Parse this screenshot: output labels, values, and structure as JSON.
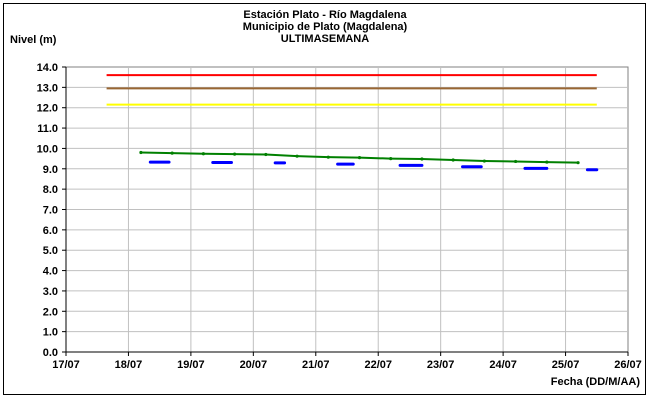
{
  "chart_data": {
    "type": "line",
    "title": "Estación Plato - Río Magdalena",
    "subtitle": "Municipio de Plato (Magdalena)",
    "subtitle2": "ULTIMASEMANA",
    "ylabel": "Nivel (m)",
    "xlabel": "Fecha (DD/M/AA)",
    "ylim": [
      0,
      14
    ],
    "xlim": [
      0,
      9
    ],
    "yticks": [
      "0.0",
      "1.0",
      "2.0",
      "3.0",
      "4.0",
      "5.0",
      "6.0",
      "7.0",
      "8.0",
      "9.0",
      "10.0",
      "11.0",
      "12.0",
      "13.0",
      "14.0"
    ],
    "xticks": [
      "17/07",
      "18/07",
      "19/07",
      "20/07",
      "21/07",
      "22/07",
      "23/07",
      "24/07",
      "25/07",
      "26/07"
    ],
    "grid": true,
    "thresholds": [
      {
        "value": 13.6,
        "color": "#ff0000",
        "x": [
          0.65,
          8.5
        ]
      },
      {
        "value": 12.95,
        "color": "#996633",
        "x": [
          0.65,
          8.5
        ]
      },
      {
        "value": 12.15,
        "color": "#ffff00",
        "x": [
          0.65,
          8.5
        ]
      }
    ],
    "series": [
      {
        "color": "#008000",
        "style": "solid",
        "x": [
          1.2,
          1.7,
          2.2,
          2.7,
          3.2,
          3.7,
          4.2,
          4.7,
          5.2,
          5.7,
          6.2,
          6.7,
          7.2,
          7.7,
          8.2
        ],
        "values": [
          9.8,
          9.77,
          9.74,
          9.72,
          9.7,
          9.62,
          9.57,
          9.55,
          9.5,
          9.48,
          9.43,
          9.38,
          9.36,
          9.33,
          9.3
        ]
      },
      {
        "color": "#0000ff",
        "style": "dashed",
        "segments": [
          {
            "x": [
              1.35,
              1.65
            ],
            "values": [
              9.33,
              9.33
            ]
          },
          {
            "x": [
              2.35,
              2.65
            ],
            "values": [
              9.31,
              9.31
            ]
          },
          {
            "x": [
              3.35,
              3.5
            ],
            "values": [
              9.29,
              9.29
            ]
          },
          {
            "x": [
              4.35,
              4.6
            ],
            "values": [
              9.23,
              9.23
            ]
          },
          {
            "x": [
              5.35,
              5.7
            ],
            "values": [
              9.17,
              9.17
            ]
          },
          {
            "x": [
              6.35,
              6.65
            ],
            "values": [
              9.1,
              9.1
            ]
          },
          {
            "x": [
              7.35,
              7.7
            ],
            "values": [
              9.02,
              9.02
            ]
          },
          {
            "x": [
              8.35,
              8.5
            ],
            "values": [
              8.95,
              8.95
            ]
          }
        ]
      }
    ]
  }
}
